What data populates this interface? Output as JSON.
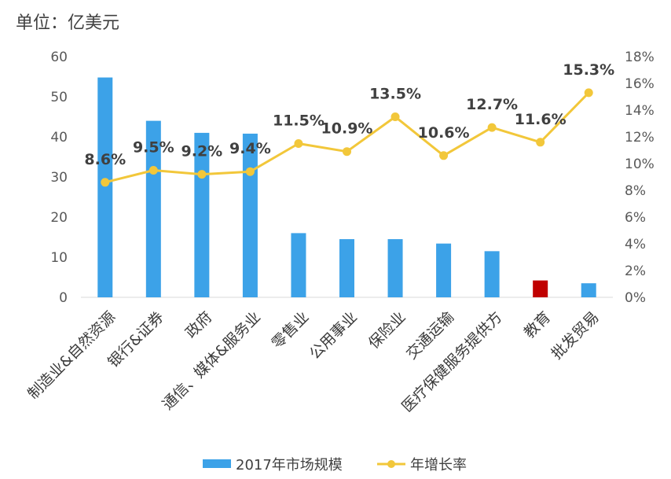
{
  "unit_label": "单位：亿美元",
  "colors": {
    "bar": "#3CA2E8",
    "bar_highlight": "#C00000",
    "line": "#F2C73A",
    "axis_text": "#595959"
  },
  "chart_data": {
    "type": "bar+line",
    "categories": [
      "制造业&自然资源",
      "银行&证券",
      "政府",
      "通信、媒体&服务业",
      "零售业",
      "公用事业",
      "保险业",
      "交通运输",
      "医疗保健服务提供方",
      "教育",
      "批发贸易"
    ],
    "highlight_category": "教育",
    "series": [
      {
        "name": "2017年市场规模",
        "type": "bar",
        "axis": "left",
        "values": [
          54.8,
          44.0,
          41.0,
          40.8,
          16.0,
          14.5,
          14.5,
          13.4,
          11.5,
          4.2,
          3.5
        ]
      },
      {
        "name": "年增长率",
        "type": "line",
        "axis": "right",
        "values": [
          8.6,
          9.5,
          9.2,
          9.4,
          11.5,
          10.9,
          13.5,
          10.6,
          12.7,
          11.6,
          15.3
        ],
        "labels": [
          "8.6%",
          "9.5%",
          "9.2%",
          "9.4%",
          "11.5%",
          "10.9%",
          "13.5%",
          "10.6%",
          "12.7%",
          "11.6%",
          "15.3%"
        ]
      }
    ],
    "y_left": {
      "min": 0,
      "max": 60,
      "ticks": [
        "0",
        "10",
        "20",
        "30",
        "40",
        "50",
        "60"
      ]
    },
    "y_right": {
      "min": 0,
      "max": 18,
      "ticks": [
        "0%",
        "2%",
        "4%",
        "6%",
        "8%",
        "10%",
        "12%",
        "14%",
        "16%",
        "18%"
      ]
    },
    "grid": false,
    "legend_position": "bottom"
  }
}
